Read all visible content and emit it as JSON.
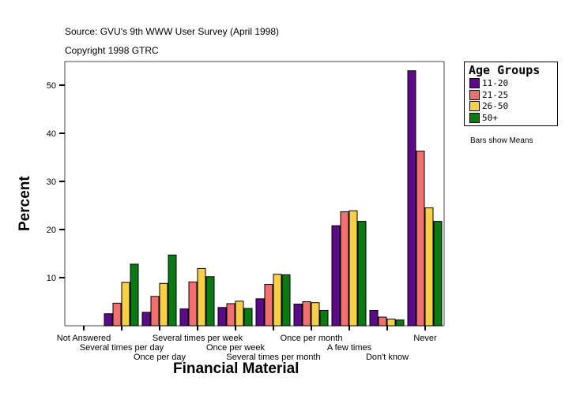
{
  "chart_data": {
    "type": "bar",
    "title": "Source: GVU's 9th WWW User Survey (April 1998)",
    "subtitle": "Copyright 1998 GTRC",
    "xlabel": "Financial Material",
    "ylabel": "Percent",
    "note": "Bars show Means",
    "legend_title": "Age Groups",
    "legend_placement": "right",
    "ylim": [
      0,
      55
    ],
    "yticks": [
      10,
      20,
      30,
      40,
      50
    ],
    "grid": false,
    "categories": [
      "Not Answered",
      "Several times per day",
      "Once per day",
      "Several times per week",
      "Once per week",
      "Several times per month",
      "Once per month",
      "A few times",
      "Don't know",
      "Never"
    ],
    "series": [
      {
        "name": "11-20",
        "color": "#5c0a8c",
        "values": [
          0,
          2.5,
          2.8,
          3.5,
          3.8,
          5.6,
          4.5,
          20.8,
          3.2,
          53.0
        ]
      },
      {
        "name": "21-25",
        "color": "#f07070",
        "values": [
          0,
          4.7,
          6.1,
          9.1,
          4.6,
          8.6,
          5.0,
          23.7,
          1.8,
          36.3
        ]
      },
      {
        "name": "26-50",
        "color": "#f8d048",
        "values": [
          0,
          9.0,
          8.8,
          11.9,
          5.1,
          10.7,
          4.8,
          23.9,
          1.4,
          24.5
        ]
      },
      {
        "name": "50+",
        "color": "#0a7a14",
        "values": [
          0,
          12.8,
          14.7,
          10.2,
          3.6,
          10.6,
          3.2,
          21.7,
          1.2,
          21.7
        ]
      }
    ]
  }
}
